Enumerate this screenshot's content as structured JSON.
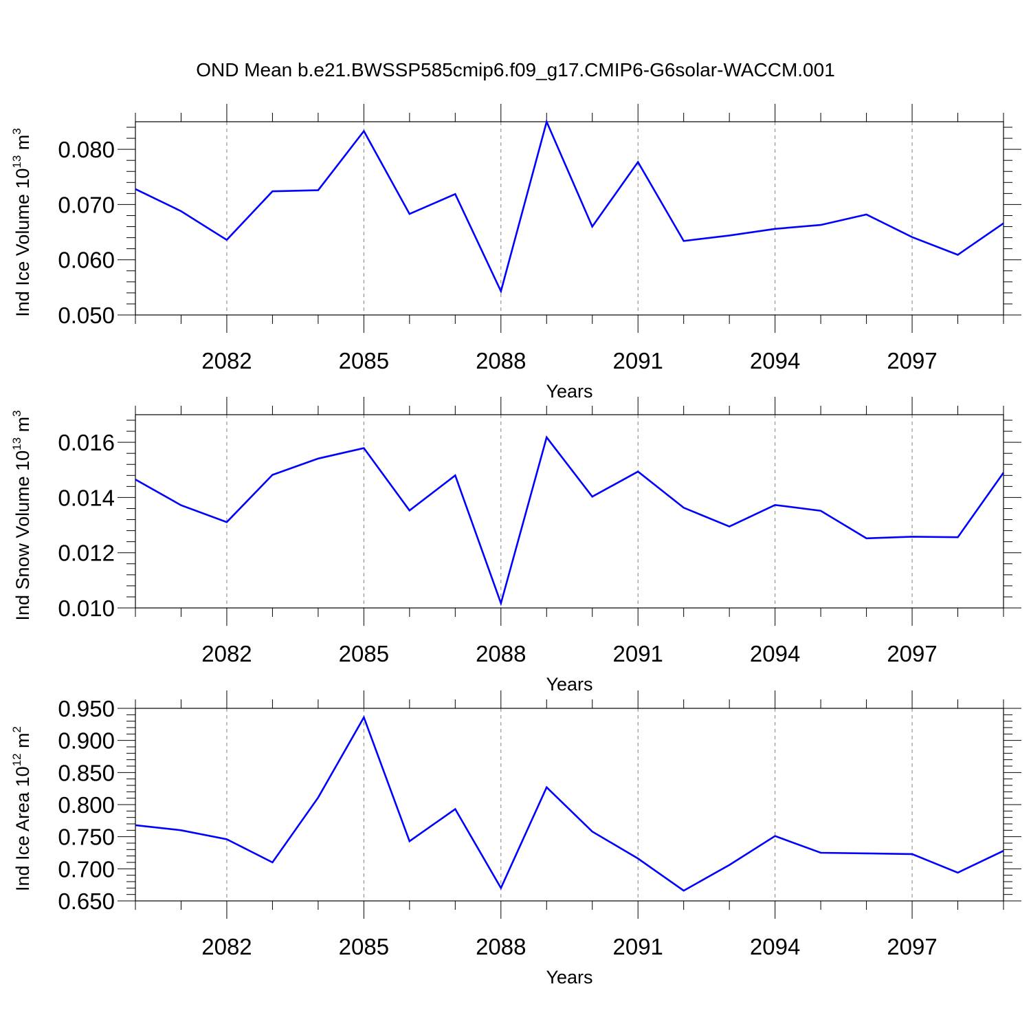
{
  "title": "OND Mean b.e21.BWSSP585cmip6.f09_g17.CMIP6-G6solar-WACCM.001",
  "colors": {
    "series": "#0000ff",
    "axis": "#000000",
    "grid": "#808080",
    "background": "#ffffff"
  },
  "chart_data": [
    {
      "type": "line",
      "ylabel": "Ind Ice Volume 10",
      "ylabel_exp": "13",
      "ylabel_unit": "m",
      "ylabel_unit_exp": "3",
      "xlabel": "Years",
      "xlim": [
        2080,
        2099
      ],
      "ylim": [
        0.05,
        0.085
      ],
      "yticks": [
        "0.050",
        "0.060",
        "0.070",
        "0.080"
      ],
      "xticks": [
        "2082",
        "2085",
        "2088",
        "2091",
        "2094",
        "2097"
      ],
      "grid": "vertical dashed at labeled x ticks",
      "x": [
        2080,
        2081,
        2082,
        2083,
        2084,
        2085,
        2086,
        2087,
        2088,
        2089,
        2090,
        2091,
        2092,
        2093,
        2094,
        2095,
        2096,
        2097,
        2098,
        2099
      ],
      "values": [
        0.0728,
        0.0688,
        0.0636,
        0.0724,
        0.0726,
        0.0833,
        0.0683,
        0.0719,
        0.0543,
        0.085,
        0.066,
        0.0777,
        0.0634,
        0.0644,
        0.0656,
        0.0663,
        0.0682,
        0.0641,
        0.0609,
        0.0666
      ]
    },
    {
      "type": "line",
      "ylabel": "Ind Snow Volume 10",
      "ylabel_exp": "13",
      "ylabel_unit": "m",
      "ylabel_unit_exp": "3",
      "xlabel": "Years",
      "xlim": [
        2080,
        2099
      ],
      "ylim": [
        0.01,
        0.017
      ],
      "yticks": [
        "0.010",
        "0.012",
        "0.014",
        "0.016"
      ],
      "xticks": [
        "2082",
        "2085",
        "2088",
        "2091",
        "2094",
        "2097"
      ],
      "grid": "vertical dashed at labeled x ticks",
      "x": [
        2080,
        2081,
        2082,
        2083,
        2084,
        2085,
        2086,
        2087,
        2088,
        2089,
        2090,
        2091,
        2092,
        2093,
        2094,
        2095,
        2096,
        2097,
        2098,
        2099
      ],
      "values": [
        0.01465,
        0.01372,
        0.01311,
        0.01482,
        0.01541,
        0.01579,
        0.01353,
        0.0148,
        0.01017,
        0.01618,
        0.01403,
        0.01494,
        0.01363,
        0.01295,
        0.01373,
        0.01352,
        0.01252,
        0.01258,
        0.01256,
        0.0149
      ]
    },
    {
      "type": "line",
      "ylabel": "Ind Ice Area 10",
      "ylabel_exp": "12",
      "ylabel_unit": "m",
      "ylabel_unit_exp": "2",
      "xlabel": "Years",
      "xlim": [
        2080,
        2099
      ],
      "ylim": [
        0.65,
        0.95
      ],
      "yticks": [
        "0.650",
        "0.700",
        "0.750",
        "0.800",
        "0.850",
        "0.900",
        "0.950"
      ],
      "xticks": [
        "2082",
        "2085",
        "2088",
        "2091",
        "2094",
        "2097"
      ],
      "grid": "vertical dashed at labeled x ticks",
      "x": [
        2080,
        2081,
        2082,
        2083,
        2084,
        2085,
        2086,
        2087,
        2088,
        2089,
        2090,
        2091,
        2092,
        2093,
        2094,
        2095,
        2096,
        2097,
        2098,
        2099
      ],
      "values": [
        0.768,
        0.76,
        0.746,
        0.71,
        0.811,
        0.936,
        0.743,
        0.793,
        0.67,
        0.827,
        0.758,
        0.716,
        0.666,
        0.706,
        0.751,
        0.725,
        0.724,
        0.723,
        0.694,
        0.728
      ]
    }
  ]
}
